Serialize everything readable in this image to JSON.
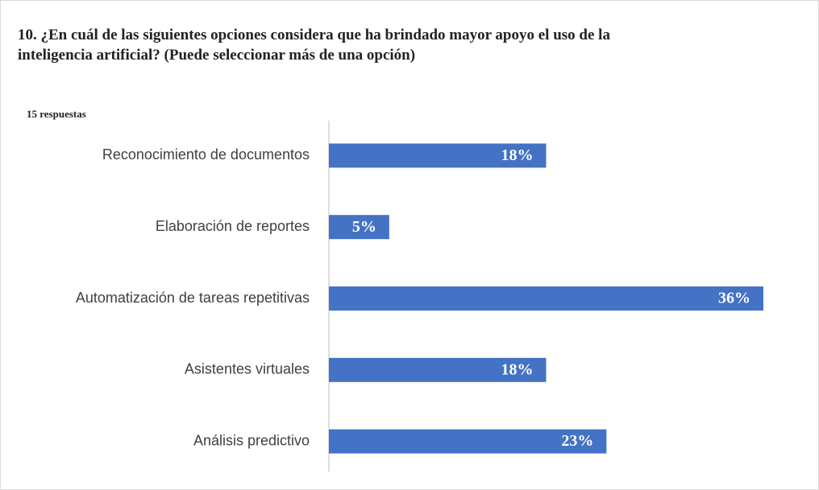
{
  "chart_data": {
    "type": "bar",
    "orientation": "horizontal",
    "title": "10. ¿En cuál de las siguientes opciones considera que ha brindado mayor apoyo el uso de la inteligencia artificial?  (Puede seleccionar más de una opción)",
    "subtitle": "15 respuestas",
    "categories": [
      "Reconocimiento de documentos",
      "Elaboración de reportes",
      "Automatización de tareas repetitivas",
      "Asistentes virtuales",
      "Análisis predictivo"
    ],
    "values": [
      18,
      5,
      36,
      18,
      23
    ],
    "value_labels": [
      "18%",
      "5%",
      "36%",
      "18%",
      "23%"
    ],
    "color": "#4472c4"
  }
}
